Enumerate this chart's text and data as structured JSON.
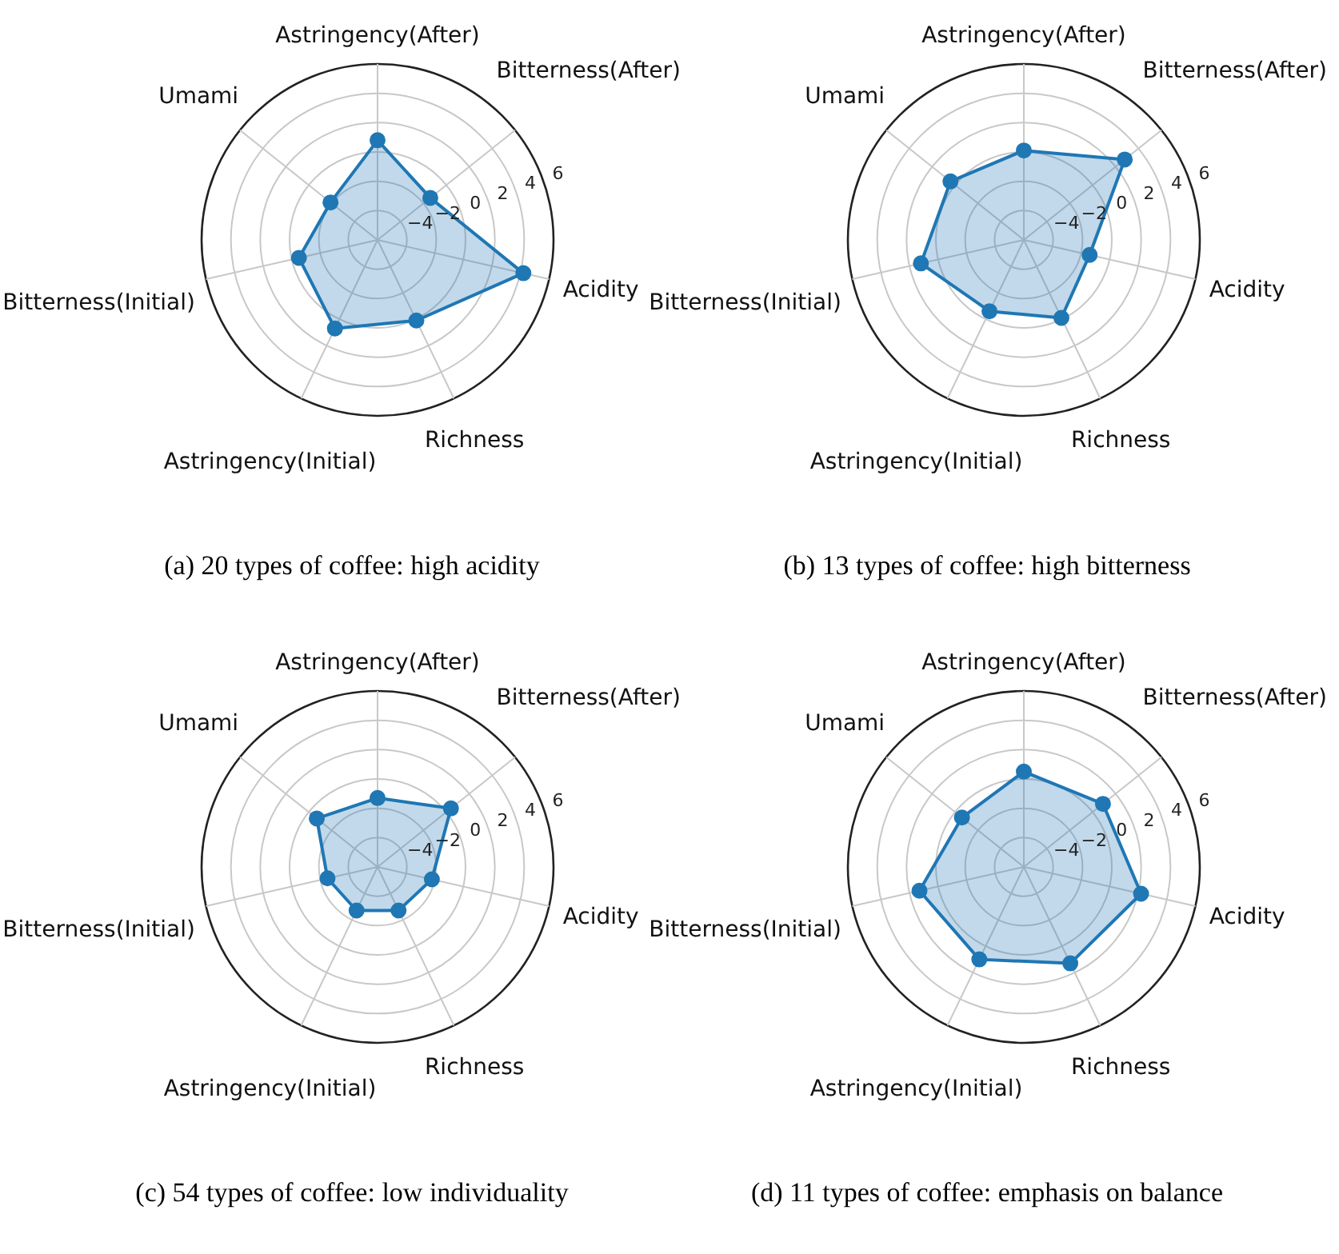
{
  "chart_data": [
    {
      "type": "radar",
      "title": "(a) 20 types of coffee: high acidity",
      "categories": [
        "Astringency(After)",
        "Bitterness(After)",
        "Acidity",
        "Richness",
        "Astringency(Initial)",
        "Bitterness(Initial)",
        "Umami"
      ],
      "ylim": [
        -6,
        6
      ],
      "yticks": [
        -4,
        -2,
        0,
        2,
        4,
        6
      ],
      "grid": true,
      "marker": "circle",
      "series": [
        {
          "color": "#1f77b4",
          "values": [
            0.8,
            -1.4,
            4.2,
            0.1,
            0.7,
            -0.5,
            -1.9
          ]
        }
      ]
    },
    {
      "type": "radar",
      "title": "(b) 13 types of coffee: high bitterness",
      "categories": [
        "Astringency(After)",
        "Bitterness(After)",
        "Acidity",
        "Richness",
        "Astringency(Initial)",
        "Bitterness(Initial)",
        "Umami"
      ],
      "ylim": [
        -6,
        6
      ],
      "yticks": [
        -4,
        -2,
        0,
        2,
        4,
        6
      ],
      "grid": true,
      "marker": "circle",
      "series": [
        {
          "color": "#1f77b4",
          "values": [
            0.1,
            2.8,
            -1.4,
            -0.1,
            -0.6,
            1.2,
            0.4
          ]
        }
      ]
    },
    {
      "type": "radar",
      "title": "(c) 54 types of coffee: low individuality",
      "categories": [
        "Astringency(After)",
        "Bitterness(After)",
        "Acidity",
        "Richness",
        "Astringency(Initial)",
        "Bitterness(Initial)",
        "Umami"
      ],
      "ylim": [
        -6,
        6
      ],
      "yticks": [
        -4,
        -2,
        0,
        2,
        4,
        6
      ],
      "grid": true,
      "marker": "circle",
      "series": [
        {
          "color": "#1f77b4",
          "values": [
            -1.3,
            0.4,
            -2.2,
            -2.7,
            -2.7,
            -2.5,
            -0.7
          ]
        }
      ]
    },
    {
      "type": "radar",
      "title": "(d) 11 types of coffee: emphasis on balance",
      "categories": [
        "Astringency(After)",
        "Bitterness(After)",
        "Acidity",
        "Richness",
        "Astringency(Initial)",
        "Bitterness(Initial)",
        "Umami"
      ],
      "ylim": [
        -6,
        6
      ],
      "yticks": [
        -4,
        -2,
        0,
        2,
        4,
        6
      ],
      "grid": true,
      "marker": "circle",
      "series": [
        {
          "color": "#1f77b4",
          "values": [
            0.5,
            0.9,
            2.2,
            1.3,
            1.0,
            1.3,
            -0.6
          ]
        }
      ]
    }
  ]
}
